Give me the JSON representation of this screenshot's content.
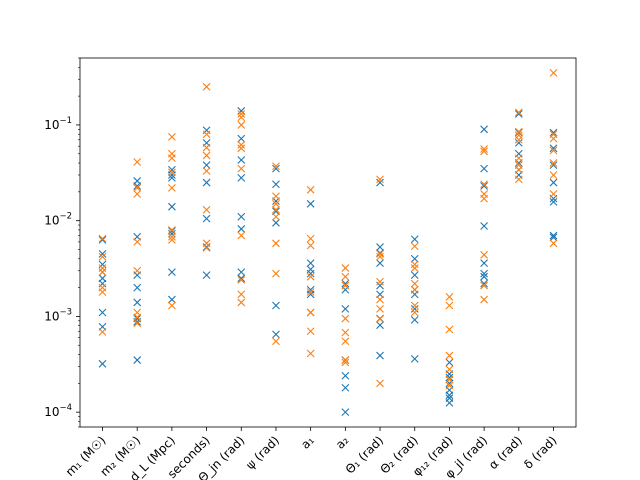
{
  "chart_data": {
    "type": "scatter",
    "marker": "x",
    "yscale": "log",
    "ylim": [
      7e-05,
      0.5
    ],
    "grid": false,
    "colors": {
      "series_a": "#1f77b4",
      "series_b": "#ff7f0e"
    },
    "ytick_labels": [
      {
        "value": 0.0001,
        "base": "10",
        "exp": "−4"
      },
      {
        "value": 0.001,
        "base": "10",
        "exp": "−3"
      },
      {
        "value": 0.01,
        "base": "10",
        "exp": "−2"
      },
      {
        "value": 0.1,
        "base": "10",
        "exp": "−1"
      }
    ],
    "categories": [
      {
        "id": "m1",
        "label": "m₁ (M☉)"
      },
      {
        "id": "m2",
        "label": "m₂ (M☉)"
      },
      {
        "id": "dL",
        "label": "d_L (Mpc)"
      },
      {
        "id": "tc",
        "label": "seconds)"
      },
      {
        "id": "thjn",
        "label": "Θ_jn (rad)"
      },
      {
        "id": "psi",
        "label": "ψ (rad)"
      },
      {
        "id": "a1",
        "label": "a₁"
      },
      {
        "id": "a2",
        "label": "a₂"
      },
      {
        "id": "th1",
        "label": "Θ₁ (rad)"
      },
      {
        "id": "th2",
        "label": "Θ₂ (rad)"
      },
      {
        "id": "ph12",
        "label": "φ₁₂ (rad)"
      },
      {
        "id": "phjl",
        "label": "φ_jl (rad)"
      },
      {
        "id": "alpha",
        "label": "α (rad)"
      },
      {
        "id": "delta",
        "label": "δ (rad)"
      }
    ],
    "series": [
      {
        "color": "#1f77b4",
        "values": [
          [
            0.0063,
            0.0045,
            0.0035,
            0.0029,
            0.0025,
            0.0022,
            0.0011,
            0.00078,
            0.00032
          ],
          [
            0.026,
            0.023,
            0.0068,
            0.0027,
            0.002,
            0.0014,
            0.00095,
            0.00088,
            0.00035
          ],
          [
            0.034,
            0.03,
            0.028,
            0.014,
            0.0078,
            0.0073,
            0.0029,
            0.0015
          ],
          [
            0.088,
            0.065,
            0.038,
            0.025,
            0.0105,
            0.0053,
            0.0027
          ],
          [
            0.14,
            0.072,
            0.043,
            0.028,
            0.011,
            0.0082,
            0.0029,
            0.0025
          ],
          [
            0.035,
            0.024,
            0.016,
            0.0125,
            0.0095,
            0.0013,
            0.00065
          ],
          [
            0.015,
            0.0036,
            0.0031,
            0.0028,
            0.0019,
            0.0017,
            0.0011
          ],
          [
            0.0022,
            0.0019,
            0.0012,
            0.00035,
            0.00024,
            0.00018,
            0.0001
          ],
          [
            0.025,
            0.0053,
            0.0046,
            0.0036,
            0.0021,
            0.0017,
            0.00095,
            0.00081,
            0.00039
          ],
          [
            0.0064,
            0.004,
            0.0027,
            0.0019,
            0.0017,
            0.0012,
            0.00092,
            0.00036
          ],
          [
            0.00033,
            0.00025,
            0.00023,
            0.0002,
            0.00017,
            0.00015,
            0.00014,
            0.000125
          ],
          [
            0.09,
            0.035,
            0.023,
            0.0088,
            0.0036,
            0.0028,
            0.0026,
            0.0022
          ],
          [
            0.13,
            0.083,
            0.065,
            0.05,
            0.04,
            0.034,
            0.03
          ],
          [
            0.083,
            0.057,
            0.038,
            0.025,
            0.017,
            0.0157,
            0.007,
            0.0067
          ]
        ]
      },
      {
        "color": "#ff7f0e",
        "values": [
          [
            0.0065,
            0.0042,
            0.0032,
            0.0029,
            0.002,
            0.0018,
            0.00069
          ],
          [
            0.041,
            0.022,
            0.019,
            0.006,
            0.003,
            0.0011,
            0.00098,
            0.00085
          ],
          [
            0.075,
            0.05,
            0.045,
            0.032,
            0.022,
            0.008,
            0.0068,
            0.0063,
            0.0013
          ],
          [
            0.25,
            0.08,
            0.058,
            0.048,
            0.033,
            0.013,
            0.0058,
            0.0052
          ],
          [
            0.13,
            0.12,
            0.1,
            0.062,
            0.057,
            0.035,
            0.007,
            0.0024,
            0.0017,
            0.0014
          ],
          [
            0.037,
            0.018,
            0.015,
            0.013,
            0.011,
            0.0058,
            0.0028,
            0.00055
          ],
          [
            0.021,
            0.0065,
            0.0055,
            0.0026,
            0.0018,
            0.0011,
            0.0007,
            0.00041
          ],
          [
            0.0032,
            0.0026,
            0.0021,
            0.00095,
            0.00068,
            0.00055,
            0.00035,
            0.00033
          ],
          [
            0.027,
            0.0045,
            0.0042,
            0.0023,
            0.0015,
            0.0012,
            0.00094,
            0.0002
          ],
          [
            0.0054,
            0.0035,
            0.0032,
            0.0022,
            0.0019,
            0.0013,
            0.0011
          ],
          [
            0.0016,
            0.0013,
            0.00073,
            0.00039,
            0.00028,
            0.00022,
            0.00019
          ],
          [
            0.056,
            0.053,
            0.024,
            0.019,
            0.017,
            0.0044,
            0.0021,
            0.0015
          ],
          [
            0.135,
            0.085,
            0.078,
            0.07,
            0.045,
            0.038,
            0.034,
            0.027
          ],
          [
            0.35,
            0.08,
            0.072,
            0.054,
            0.04,
            0.03,
            0.019,
            0.0058
          ]
        ]
      }
    ]
  }
}
